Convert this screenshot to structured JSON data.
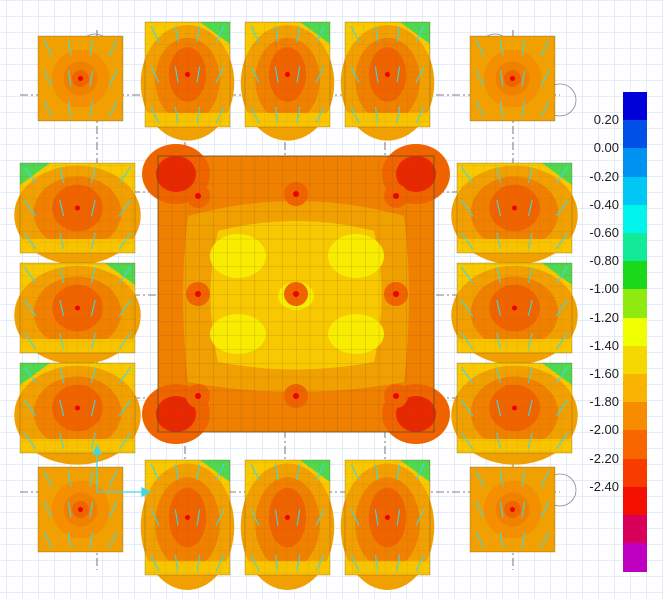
{
  "legend": {
    "colors": [
      "#0000d8",
      "#0050e8",
      "#0092f0",
      "#00c8f4",
      "#00f4ec",
      "#12ea98",
      "#1ad81a",
      "#8fea12",
      "#f0ff00",
      "#f5d800",
      "#f8b400",
      "#f88c00",
      "#f86600",
      "#f83c00",
      "#f41000",
      "#d8005a",
      "#c000c0"
    ],
    "labels": [
      "0.20",
      "0.00",
      "-0.20",
      "-0.40",
      "-0.60",
      "-0.80",
      "-1.00",
      "-1.20",
      "-1.40",
      "-1.60",
      "-1.80",
      "-2.00",
      "-2.20",
      "-2.40"
    ]
  },
  "plot": {
    "gridColor": "#c8d8f8",
    "arrowColor": "#40d8e0",
    "meshColor": "#6a4a28",
    "colors": {
      "outer": "#f0a000",
      "mid": "#f08000",
      "inner": "#f06400",
      "hot": "#e82800",
      "yellowMid": "#f8c800",
      "yellow": "#f8ec00",
      "yellowGreen": "#c0ee20",
      "green": "#50d850",
      "red": "#f00000"
    }
  }
}
